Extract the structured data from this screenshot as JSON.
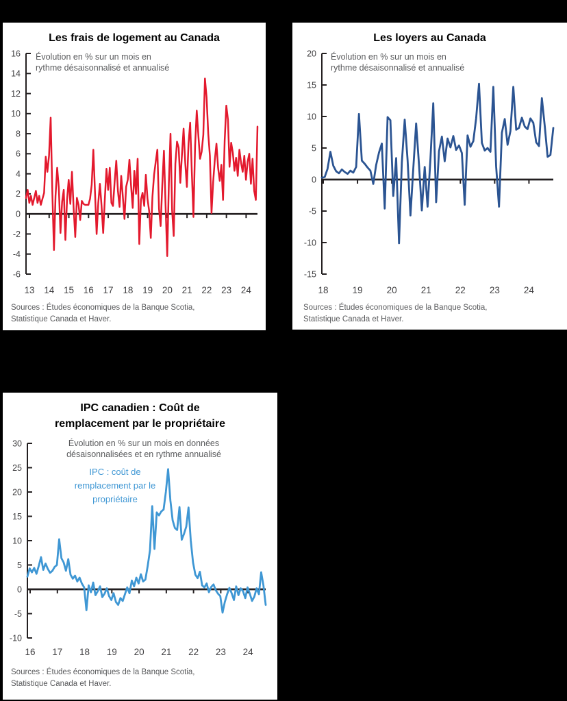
{
  "page": {
    "background": "#000000",
    "panel_background": "#ffffff",
    "axis_color": "#231f20",
    "tick_label_color": "#414042",
    "subtitle_color": "#595a5c"
  },
  "sources": {
    "line1": "Sources : Études économiques de la Banque Scotia,",
    "line2": "Statistique Canada et Haver."
  },
  "chart_data": [
    {
      "type": "line",
      "title_lines": [
        "Les frais de logement au Canada"
      ],
      "subtitle_lines": [
        "Évolution en % sur un mois en",
        "rythme désaisonnalisé et annualisé"
      ],
      "line_color": "#e3192d",
      "frequency": "monthly",
      "x_start_year": 2013,
      "x_tick_labels": [
        "13",
        "14",
        "15",
        "16",
        "17",
        "18",
        "19",
        "20",
        "21",
        "22",
        "23",
        "24"
      ],
      "ylim": [
        -6,
        16
      ],
      "yticks": [
        16,
        14,
        12,
        10,
        8,
        6,
        4,
        2,
        0,
        -2,
        -4,
        -6
      ],
      "values": [
        1.6,
        2.4,
        1.1,
        1.8,
        0.9,
        1.6,
        2.3,
        1.1,
        1.8,
        0.9,
        1.5,
        2.1,
        5.7,
        4.2,
        5.8,
        9.6,
        2.2,
        -3.6,
        1.8,
        4.6,
        2.6,
        -1.9,
        1.2,
        2.4,
        -2.6,
        1.4,
        3.4,
        1.0,
        4.2,
        0.6,
        -2.3,
        1.6,
        0.9,
        -0.6,
        1.3,
        1.0,
        0.9,
        0.9,
        0.9,
        1.5,
        2.9,
        6.4,
        2.2,
        -2.0,
        1.1,
        3.0,
        0.8,
        -1.9,
        1.5,
        4.5,
        2.4,
        4.6,
        1.1,
        0.8,
        3.2,
        5.3,
        2.3,
        0.7,
        3.8,
        1.7,
        -0.5,
        2.7,
        3.4,
        5.4,
        2.8,
        0.6,
        4.3,
        2.0,
        5.5,
        -3.0,
        1.4,
        2.1,
        0.8,
        3.9,
        1.5,
        0.3,
        -2.4,
        1.7,
        3.9,
        5.2,
        6.4,
        0.5,
        -1.2,
        2.9,
        6.3,
        0.8,
        -4.2,
        3.1,
        8.0,
        0.4,
        -2.2,
        5.0,
        7.2,
        6.6,
        3.1,
        5.9,
        8.5,
        5.1,
        2.7,
        7.0,
        9.1,
        4.2,
        -0.3,
        6.8,
        10.3,
        7.8,
        5.5,
        6.2,
        7.9,
        13.5,
        11.6,
        8.0,
        5.8,
        0.1,
        3.2,
        5.4,
        7.0,
        4.6,
        3.3,
        4.9,
        1.4,
        7.3,
        10.8,
        9.4,
        4.7,
        7.1,
        6.1,
        4.3,
        5.6,
        3.8,
        6.4,
        5.1,
        4.2,
        5.8,
        3.4,
        5.2,
        6.0,
        3.0,
        5.5,
        2.3,
        1.4,
        8.7
      ]
    },
    {
      "type": "line",
      "title_lines": [
        "Les loyers au Canada"
      ],
      "subtitle_lines": [
        "Évolution en % sur un mois en",
        "rythme désaisonnalisé et annualisé"
      ],
      "line_color": "#2b5492",
      "frequency": "monthly",
      "x_start_year": 2018,
      "x_tick_labels": [
        "18",
        "19",
        "20",
        "21",
        "22",
        "23",
        "24"
      ],
      "ylim": [
        -15,
        20
      ],
      "yticks": [
        20,
        15,
        10,
        5,
        0,
        -5,
        -10,
        -15
      ],
      "values": [
        0.3,
        0.4,
        1.7,
        4.4,
        2.2,
        1.3,
        1.0,
        1.6,
        1.2,
        0.9,
        1.4,
        1.1,
        2.0,
        10.4,
        3.0,
        2.5,
        1.9,
        1.4,
        -0.7,
        2.3,
        4.3,
        5.7,
        -4.6,
        9.9,
        9.4,
        -2.6,
        3.4,
        -10.1,
        2.7,
        9.5,
        3.1,
        -5.7,
        1.7,
        8.9,
        2.3,
        -4.9,
        2.0,
        -4.3,
        3.3,
        12.1,
        -3.6,
        4.5,
        6.8,
        2.9,
        6.5,
        5.1,
        6.9,
        4.7,
        5.4,
        4.2,
        -4.0,
        7.0,
        5.2,
        6.1,
        9.7,
        15.2,
        5.8,
        4.6,
        5.0,
        4.4,
        14.7,
        2.1,
        -4.3,
        7.4,
        9.6,
        5.5,
        7.7,
        14.7,
        7.9,
        8.2,
        9.8,
        8.4,
        8.0,
        9.7,
        9.0,
        5.9,
        5.3,
        12.9,
        8.5,
        3.6,
        3.9,
        8.2
      ]
    },
    {
      "type": "line",
      "title_lines": [
        "IPC canadien : Coût de",
        "remplacement par le propriétaire"
      ],
      "subtitle_lines": [
        "Évolution en % sur un mois en données",
        "désaisonnalisées et en rythme annualisé"
      ],
      "legend_lines": [
        "IPC : coût de",
        "remplacement par le",
        "propriétaire"
      ],
      "line_color": "#3f97d4",
      "frequency": "monthly",
      "x_start_year": 2016,
      "x_tick_labels": [
        "16",
        "17",
        "18",
        "19",
        "20",
        "21",
        "22",
        "23",
        "24"
      ],
      "ylim": [
        -10,
        30
      ],
      "yticks": [
        30,
        25,
        20,
        15,
        10,
        5,
        0,
        -5,
        -10
      ],
      "values": [
        2.6,
        4.3,
        3.5,
        4.4,
        3.2,
        4.8,
        6.6,
        4.0,
        5.3,
        4.2,
        3.4,
        3.8,
        4.6,
        5.0,
        10.3,
        6.4,
        5.5,
        3.8,
        6.2,
        3.0,
        2.2,
        2.8,
        1.6,
        2.4,
        1.2,
        0.4,
        -4.3,
        0.8,
        -0.6,
        1.4,
        -1.2,
        -0.4,
        0.6,
        -1.6,
        -0.9,
        0.2,
        -1.4,
        -2.2,
        -0.8,
        -2.6,
        -3.2,
        -1.8,
        -2.4,
        -1.0,
        0.4,
        -0.8,
        1.8,
        0.6,
        2.4,
        1.2,
        3.1,
        1.6,
        2.0,
        4.8,
        8.0,
        17.1,
        8.3,
        15.8,
        15.2,
        16.0,
        16.4,
        20.0,
        24.7,
        18.3,
        14.2,
        12.6,
        12.2,
        16.9,
        10.2,
        11.4,
        12.9,
        16.8,
        10.0,
        5.5,
        3.0,
        2.3,
        3.6,
        0.8,
        0.4,
        1.2,
        -0.6,
        0.5,
        1.0,
        -0.2,
        -0.9,
        -1.4,
        -4.8,
        -2.6,
        -1.0,
        0.3,
        -0.8,
        -2.2,
        0.6,
        -1.2,
        0.2,
        -0.4,
        -1.8,
        0.4,
        -0.9,
        -2.4,
        -1.5,
        0.2,
        -1.0,
        3.5,
        0.8,
        -3.2
      ]
    }
  ]
}
